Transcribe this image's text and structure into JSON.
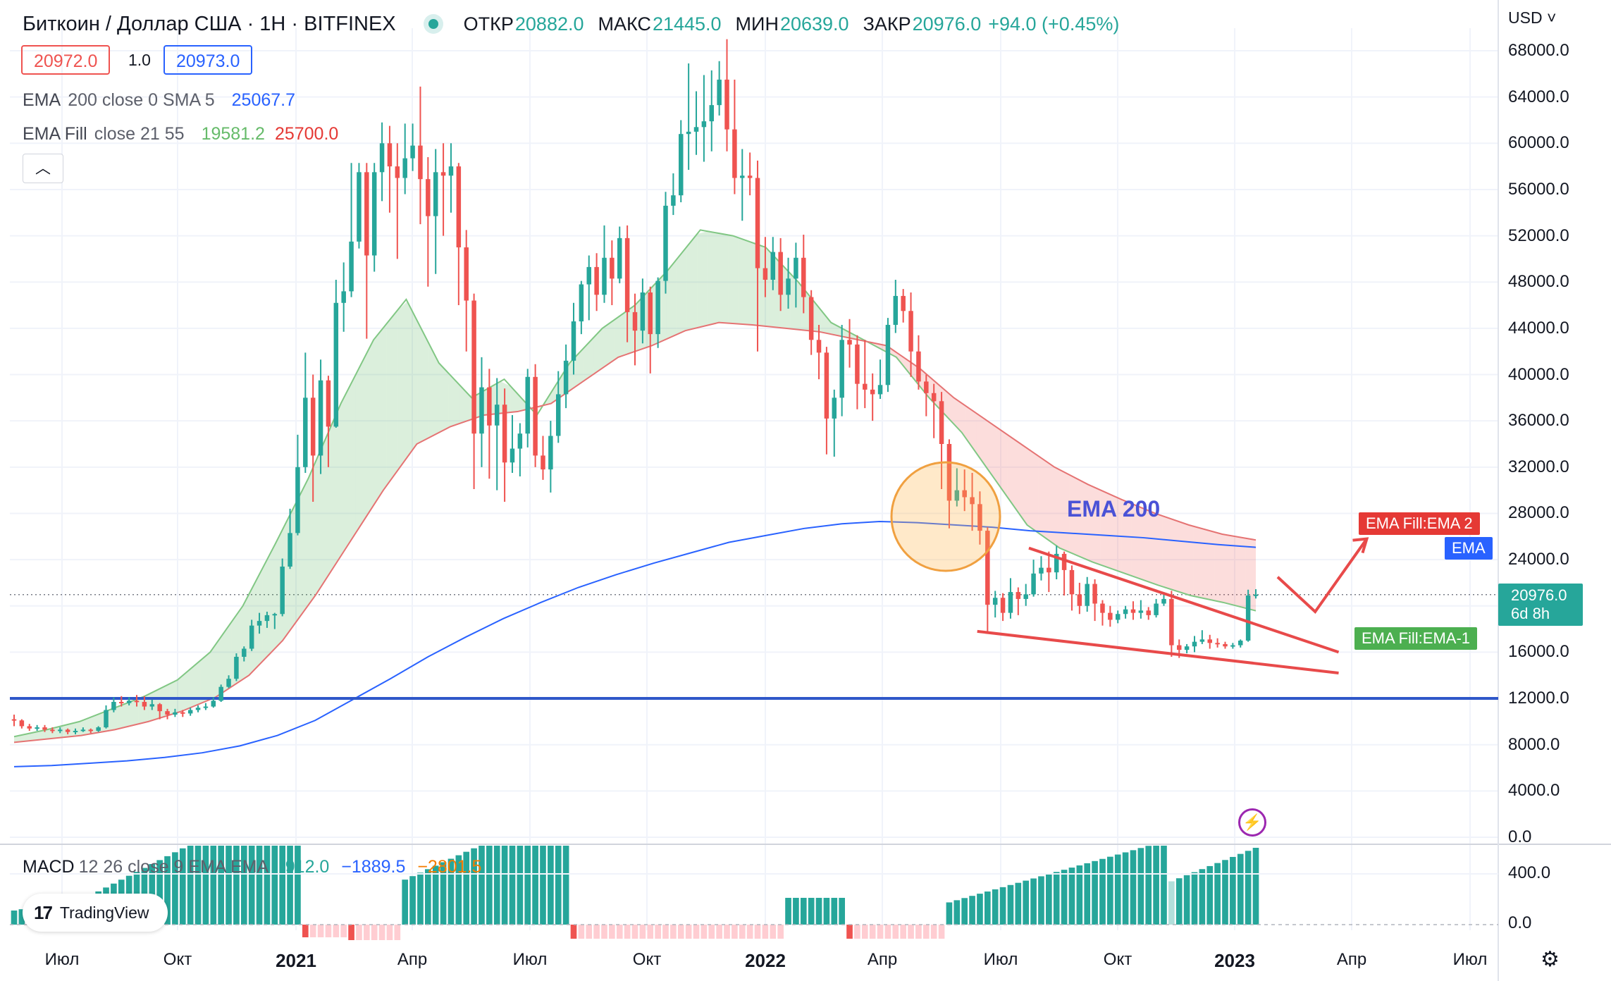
{
  "header": {
    "symbol": "Биткоин / Доллар США · 1Н · BITFINEX",
    "open_label": "ОТКР",
    "open": "20882.0",
    "high_label": "МАКС",
    "high": "21445.0",
    "low_label": "МИН",
    "low": "20639.0",
    "close_label": "ЗАКР",
    "close": "20976.0",
    "change": "+94.0 (+0.45%)"
  },
  "trade": {
    "sell": "20972.0",
    "spread": "1.0",
    "buy": "20973.0"
  },
  "indicators": [
    {
      "name": "EMA",
      "args": "200 close 0 SMA 5",
      "values": [
        "25067.7"
      ]
    },
    {
      "name": "EMA Fill",
      "args": "close 21 55",
      "values": [
        "19581.2",
        "25700.0"
      ]
    }
  ],
  "collapse_icon": "chevron-up-icon",
  "currency": "USD",
  "y_axis": [
    "68000.0",
    "64000.0",
    "60000.0",
    "56000.0",
    "52000.0",
    "48000.0",
    "44000.0",
    "40000.0",
    "36000.0",
    "32000.0",
    "28000.0",
    "24000.0",
    "16000.0",
    "12000.0",
    "8000.0",
    "4000.0",
    "0.0"
  ],
  "x_axis": [
    {
      "label": "Июл",
      "bold": false
    },
    {
      "label": "Окт",
      "bold": false
    },
    {
      "label": "2021",
      "bold": true
    },
    {
      "label": "Апр",
      "bold": false
    },
    {
      "label": "Июл",
      "bold": false
    },
    {
      "label": "Окт",
      "bold": false
    },
    {
      "label": "2022",
      "bold": true
    },
    {
      "label": "Апр",
      "bold": false
    },
    {
      "label": "Июл",
      "bold": false
    },
    {
      "label": "Окт",
      "bold": false
    },
    {
      "label": "2023",
      "bold": true
    },
    {
      "label": "Апр",
      "bold": false
    },
    {
      "label": "Июл",
      "bold": false
    }
  ],
  "tags": {
    "ema_fill_2": "EMA Fill:EMA 2",
    "ema": "EMA",
    "ema_fill_1": "EMA Fill:EMA-1",
    "last_price": "20976.0",
    "countdown": "6d 8h"
  },
  "annotation": {
    "text": "EMA 200"
  },
  "macd": {
    "name": "MACD",
    "args": "12 26 close 9 EMA EMA",
    "values": [
      "912.0",
      "−1889.5",
      "−2801.5"
    ],
    "y_axis": [
      "400.0",
      "0.0"
    ]
  },
  "branding": {
    "logo_text": "TradingView"
  },
  "colors": {
    "up": "#26a69a",
    "down": "#ef5350",
    "ema200": "#2962ff",
    "ema_fill_fast": "#26a69a",
    "ema_fill_slow": "#ef5350",
    "support": "#2f57c9",
    "annotation": "#e84a4a"
  },
  "chart_data": {
    "type": "candlestick",
    "title": "Биткоин / Доллар США · 1Н · BITFINEX",
    "ylim": [
      0,
      70000
    ],
    "horizontal_line": 12000,
    "x_ticks": [
      "Июл",
      "Окт",
      "2021",
      "Апр",
      "Июл",
      "Окт",
      "2022",
      "Апр",
      "Июл",
      "Окт",
      "2023",
      "Апр",
      "Июл"
    ],
    "candles": [
      [
        10200,
        10100,
        9600,
        10600
      ],
      [
        10100,
        9600,
        9400,
        10200
      ],
      [
        9600,
        9400,
        9200,
        9800
      ],
      [
        9400,
        9500,
        9200,
        9700
      ],
      [
        9500,
        9300,
        9100,
        9700
      ],
      [
        9300,
        9200,
        9000,
        9500
      ],
      [
        9200,
        9300,
        9000,
        9500
      ],
      [
        9300,
        9100,
        8900,
        9400
      ],
      [
        9100,
        9200,
        8900,
        9400
      ],
      [
        9200,
        9300,
        9100,
        9500
      ],
      [
        9300,
        9200,
        9000,
        9400
      ],
      [
        9200,
        9500,
        9100,
        9600
      ],
      [
        9500,
        11000,
        9400,
        11400
      ],
      [
        11000,
        11700,
        10800,
        12100
      ],
      [
        11700,
        11600,
        11300,
        12200
      ],
      [
        11600,
        11800,
        11400,
        12100
      ],
      [
        11800,
        11700,
        11300,
        12300
      ],
      [
        11700,
        11300,
        11000,
        12200
      ],
      [
        11300,
        11500,
        11000,
        11900
      ],
      [
        11500,
        10900,
        10200,
        11600
      ],
      [
        10900,
        10600,
        10200,
        11100
      ],
      [
        10600,
        10800,
        10400,
        11100
      ],
      [
        10800,
        10700,
        10400,
        11000
      ],
      [
        10700,
        11000,
        10500,
        11200
      ],
      [
        11000,
        11200,
        10800,
        11400
      ],
      [
        11200,
        11300,
        11000,
        11600
      ],
      [
        11300,
        11800,
        11200,
        12100
      ],
      [
        11800,
        13000,
        11700,
        13200
      ],
      [
        13000,
        13700,
        12900,
        14000
      ],
      [
        13700,
        15600,
        13500,
        15900
      ],
      [
        15600,
        16300,
        15200,
        16500
      ],
      [
        16300,
        18300,
        16100,
        18800
      ],
      [
        18300,
        18700,
        17600,
        19400
      ],
      [
        18700,
        19200,
        18100,
        19500
      ],
      [
        19200,
        19300,
        18000,
        19400
      ],
      [
        19300,
        23400,
        19100,
        24100
      ],
      [
        23400,
        26300,
        23200,
        28400
      ],
      [
        26300,
        32000,
        26100,
        34800
      ],
      [
        32000,
        38000,
        31500,
        41900
      ],
      [
        38000,
        33000,
        29000,
        40000
      ],
      [
        33000,
        39500,
        31400,
        41300
      ],
      [
        39500,
        35500,
        32000,
        39900
      ],
      [
        35500,
        46200,
        35400,
        48200
      ],
      [
        46200,
        47200,
        43700,
        49700
      ],
      [
        47200,
        51500,
        46700,
        58300
      ],
      [
        51500,
        57500,
        50900,
        58300
      ],
      [
        57500,
        50300,
        43100,
        58300
      ],
      [
        50300,
        57500,
        48900,
        58300
      ],
      [
        57500,
        60000,
        55000,
        61800
      ],
      [
        60000,
        58000,
        54000,
        61500
      ],
      [
        58000,
        57000,
        50000,
        60000
      ],
      [
        57000,
        58700,
        55600,
        61700
      ],
      [
        58700,
        59800,
        57600,
        61700
      ],
      [
        59800,
        56900,
        53000,
        64900
      ],
      [
        56900,
        53700,
        47600,
        58800
      ],
      [
        53700,
        57500,
        48700,
        59500
      ],
      [
        57500,
        57200,
        52000,
        60000
      ],
      [
        57200,
        58000,
        54000,
        60000
      ],
      [
        58000,
        51000,
        46000,
        58300
      ],
      [
        51000,
        46400,
        42000,
        52500
      ],
      [
        46400,
        34900,
        30100,
        47000
      ],
      [
        34900,
        38900,
        32000,
        41500
      ],
      [
        38900,
        35600,
        31000,
        40500
      ],
      [
        35600,
        37400,
        30000,
        39700
      ],
      [
        37400,
        32400,
        29000,
        38800
      ],
      [
        32400,
        33600,
        31500,
        36500
      ],
      [
        33600,
        34900,
        31200,
        35800
      ],
      [
        34900,
        39800,
        33700,
        40500
      ],
      [
        39800,
        33000,
        32000,
        40900
      ],
      [
        33000,
        31800,
        30900,
        34700
      ],
      [
        31800,
        34700,
        29800,
        36000
      ],
      [
        34700,
        38300,
        34100,
        40300
      ],
      [
        38300,
        41200,
        37100,
        42600
      ],
      [
        41200,
        44600,
        40000,
        46200
      ],
      [
        44600,
        47800,
        43500,
        48100
      ],
      [
        47800,
        49300,
        44700,
        50300
      ],
      [
        49300,
        46900,
        45500,
        50500
      ],
      [
        46900,
        50100,
        46200,
        52900
      ],
      [
        50100,
        48300,
        46000,
        51600
      ],
      [
        48300,
        51800,
        47900,
        52800
      ],
      [
        51800,
        45400,
        42800,
        52900
      ],
      [
        45400,
        43800,
        40800,
        47000
      ],
      [
        43800,
        47100,
        42700,
        48300
      ],
      [
        47100,
        43500,
        40100,
        47600
      ],
      [
        43500,
        48100,
        42300,
        48400
      ],
      [
        48100,
        54600,
        47000,
        55800
      ],
      [
        54600,
        55500,
        53800,
        57400
      ],
      [
        55500,
        60800,
        54900,
        62000
      ],
      [
        60800,
        61000,
        57700,
        66900
      ],
      [
        61000,
        61400,
        59000,
        64500
      ],
      [
        61400,
        61900,
        58400,
        65900
      ],
      [
        61900,
        63300,
        59300,
        66300
      ],
      [
        63300,
        65500,
        62400,
        67100
      ],
      [
        65500,
        61200,
        59300,
        69000
      ],
      [
        61200,
        57000,
        55600,
        65500
      ],
      [
        57000,
        57200,
        53300,
        59500
      ],
      [
        57200,
        57000,
        55500,
        59200
      ],
      [
        57000,
        49200,
        42000,
        58500
      ],
      [
        49200,
        48200,
        46700,
        51900
      ],
      [
        48200,
        50600,
        47300,
        51900
      ],
      [
        50600,
        46900,
        45500,
        51800
      ],
      [
        46900,
        48300,
        45700,
        50100
      ],
      [
        48300,
        50100,
        45800,
        51400
      ],
      [
        50100,
        46700,
        45300,
        52100
      ],
      [
        46700,
        43000,
        41700,
        47300
      ],
      [
        43000,
        41900,
        39600,
        44300
      ],
      [
        41900,
        36200,
        33100,
        42400
      ],
      [
        36200,
        38000,
        32900,
        38700
      ],
      [
        38000,
        43000,
        36400,
        44300
      ],
      [
        43000,
        42600,
        40600,
        44800
      ],
      [
        42600,
        39200,
        37000,
        43400
      ],
      [
        39200,
        38700,
        37100,
        43000
      ],
      [
        38700,
        38300,
        36000,
        40100
      ],
      [
        38300,
        39100,
        37900,
        41300
      ],
      [
        39100,
        44300,
        38500,
        44900
      ],
      [
        44300,
        46800,
        43600,
        48200
      ],
      [
        46800,
        45500,
        44500,
        47400
      ],
      [
        45500,
        42000,
        39800,
        47100
      ],
      [
        42000,
        39400,
        38700,
        43400
      ],
      [
        39400,
        38400,
        36400,
        40000
      ],
      [
        38400,
        37700,
        34500,
        39200
      ],
      [
        37700,
        34000,
        30100,
        38500
      ],
      [
        34000,
        29100,
        26700,
        34400
      ],
      [
        29100,
        30000,
        28600,
        31900
      ],
      [
        30000,
        29400,
        28200,
        31800
      ],
      [
        29400,
        28800,
        26500,
        31500
      ],
      [
        28800,
        26500,
        25300,
        29900
      ],
      [
        26500,
        20100,
        17600,
        26800
      ],
      [
        20100,
        20700,
        19000,
        21300
      ],
      [
        20700,
        19400,
        18700,
        21100
      ],
      [
        19400,
        21200,
        18900,
        22400
      ],
      [
        21200,
        20600,
        19200,
        21600
      ],
      [
        20600,
        21000,
        20000,
        21900
      ],
      [
        21000,
        22800,
        20800,
        24000
      ],
      [
        22800,
        23300,
        22200,
        24300
      ],
      [
        23300,
        22900,
        21200,
        24700
      ],
      [
        22900,
        24500,
        22300,
        25200
      ],
      [
        24500,
        23100,
        20900,
        24700
      ],
      [
        23100,
        21000,
        19600,
        23500
      ],
      [
        21000,
        20000,
        19300,
        22000
      ],
      [
        20000,
        21900,
        19500,
        22500
      ],
      [
        21900,
        20200,
        18700,
        22300
      ],
      [
        20200,
        19400,
        18300,
        20500
      ],
      [
        19400,
        18800,
        18200,
        20000
      ],
      [
        18800,
        19300,
        18500,
        19600
      ],
      [
        19300,
        19700,
        18900,
        20000
      ],
      [
        19700,
        19400,
        18800,
        20400
      ],
      [
        19400,
        19600,
        18900,
        20500
      ],
      [
        19600,
        19200,
        18800,
        19900
      ],
      [
        19200,
        20200,
        19000,
        20600
      ],
      [
        20200,
        20600,
        20000,
        21100
      ],
      [
        20600,
        16600,
        15600,
        21300
      ],
      [
        16600,
        16200,
        15500,
        17100
      ],
      [
        16200,
        16500,
        15900,
        16700
      ],
      [
        16500,
        16900,
        16000,
        17400
      ],
      [
        16900,
        17100,
        16700,
        17900
      ],
      [
        17100,
        16800,
        16300,
        17500
      ],
      [
        16800,
        16700,
        16400,
        17200
      ],
      [
        16700,
        16500,
        16300,
        16900
      ],
      [
        16500,
        16600,
        16300,
        16800
      ],
      [
        16600,
        17000,
        16400,
        17100
      ],
      [
        17000,
        20900,
        16900,
        21400
      ],
      [
        20900,
        20976,
        20639,
        21445
      ]
    ],
    "ema200": [
      6100,
      6200,
      6400,
      6600,
      6900,
      7300,
      7900,
      8800,
      10100,
      11900,
      13700,
      15600,
      17300,
      18900,
      20300,
      21600,
      22700,
      23700,
      24600,
      25500,
      26100,
      26700,
      27100,
      27300,
      27200,
      27000,
      26800,
      26500,
      26300,
      26100,
      25900,
      25600,
      25300,
      25067.7
    ],
    "ema_fill_fast": [
      8700,
      9300,
      10000,
      11100,
      12200,
      13600,
      16000,
      20000,
      25400,
      31000,
      37500,
      43000,
      46500,
      41000,
      38000,
      39600,
      36500,
      41000,
      44000,
      46000,
      49000,
      52500,
      52000,
      51000,
      48000,
      44500,
      43000,
      41500,
      38000,
      35000,
      31000,
      27000,
      25000,
      23800,
      22800,
      21800,
      20900,
      20300,
      19581.2
    ],
    "ema_fill_slow": [
      8200,
      8500,
      8800,
      9300,
      10000,
      10900,
      12100,
      14000,
      17000,
      21000,
      25500,
      30000,
      34000,
      35500,
      36500,
      36800,
      37500,
      39500,
      41500,
      42500,
      43800,
      44500,
      44300,
      44000,
      43700,
      43100,
      42500,
      40500,
      38000,
      36000,
      34000,
      32000,
      30500,
      29200,
      28000,
      27000,
      26200,
      25700.0
    ],
    "trend_lines": {
      "upper": [
        [
          2022.56,
          25000
        ],
        [
          2023.22,
          16000
        ]
      ],
      "lower": [
        [
          2022.45,
          17800
        ],
        [
          2023.22,
          14200
        ]
      ],
      "projection": [
        [
          2023.09,
          22500
        ],
        [
          2023.17,
          19500
        ],
        [
          2023.28,
          25800
        ]
      ]
    },
    "macd": {
      "values": [
        "912.0",
        "−1889.5",
        "−2801.5"
      ],
      "y_ticks": [
        "400.0",
        "0.0"
      ]
    }
  }
}
